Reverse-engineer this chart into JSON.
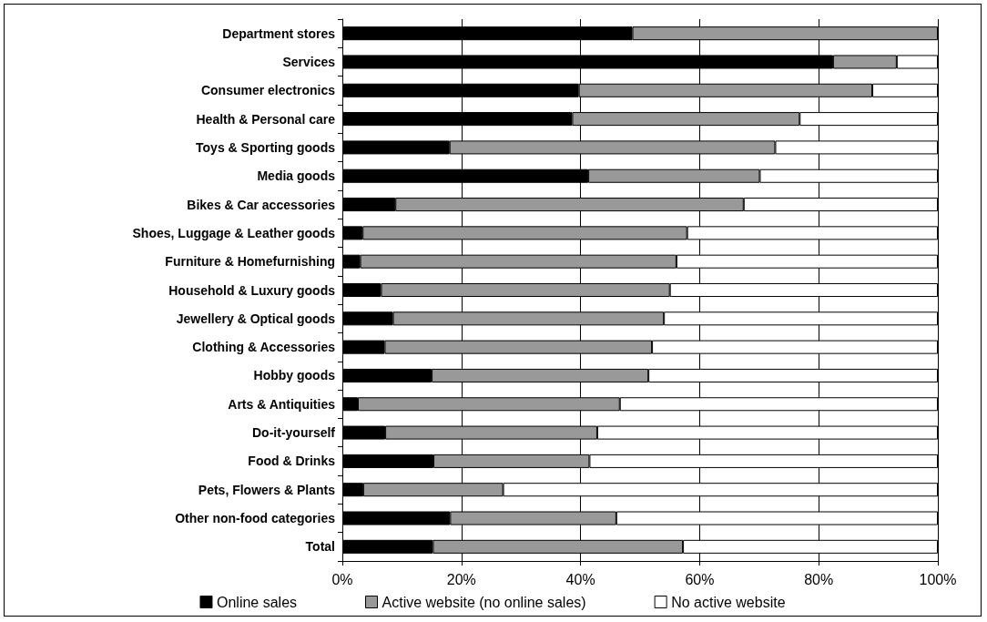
{
  "chart_data": {
    "type": "bar",
    "orientation": "horizontal",
    "stacked": true,
    "categories": [
      "Department stores",
      "Services",
      "Consumer electronics",
      "Health & Personal care",
      "Toys & Sporting goods",
      "Media goods",
      "Bikes & Car accessories",
      "Shoes, Luggage & Leather goods",
      "Furniture & Homefurnishing",
      "Household & Luxury goods",
      "Jewellery & Optical goods",
      "Clothing & Accessories",
      "Hobby goods",
      "Arts & Antiquities",
      "Do-it-yourself",
      "Food & Drinks",
      "Pets, Flowers & Plants",
      "Other non-food categories",
      "Total"
    ],
    "series": [
      {
        "name": "Online sales",
        "color": "#000000",
        "values": [
          48.7,
          82.4,
          39.7,
          38.6,
          18.0,
          41.3,
          8.9,
          3.4,
          3.0,
          6.5,
          8.5,
          7.1,
          15.0,
          2.6,
          7.2,
          15.3,
          3.5,
          18.1,
          15.2
        ]
      },
      {
        "name": "Active website (no online sales)",
        "color": "#999999",
        "values": [
          51.3,
          10.7,
          49.3,
          38.2,
          54.7,
          28.8,
          58.5,
          54.5,
          53.1,
          48.5,
          45.5,
          44.9,
          36.4,
          44.0,
          35.6,
          26.2,
          23.5,
          27.9,
          42.0
        ]
      },
      {
        "name": "No active website",
        "color": "#ffffff",
        "values": [
          0,
          6.9,
          11.0,
          23.2,
          27.3,
          29.9,
          32.6,
          42.1,
          43.9,
          45.0,
          46.0,
          48.0,
          48.6,
          53.4,
          57.2,
          58.5,
          73.0,
          54.0,
          42.8
        ]
      }
    ],
    "xlim": [
      0,
      100
    ],
    "xticks": [
      {
        "value": 0,
        "label": "0%"
      },
      {
        "value": 20,
        "label": "20%"
      },
      {
        "value": 40,
        "label": "40%"
      },
      {
        "value": 60,
        "label": "60%"
      },
      {
        "value": 80,
        "label": "80%"
      },
      {
        "value": 100,
        "label": "100%"
      }
    ],
    "grid": "x",
    "legend": "bottom"
  }
}
